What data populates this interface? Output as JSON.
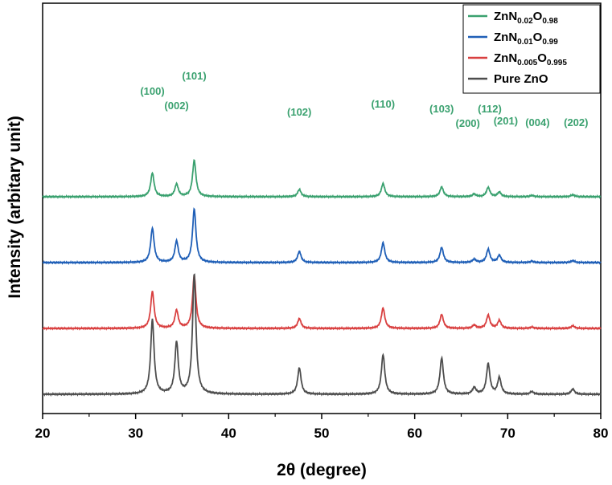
{
  "chart_data": {
    "type": "line",
    "xlabel": "2θ (degree)",
    "ylabel": "Intensity (arbitary unit)",
    "xlim": [
      20,
      80
    ],
    "xticks": [
      "20",
      "30",
      "40",
      "50",
      "60",
      "70",
      "80"
    ],
    "legend_position": "top-right",
    "series": [
      {
        "name": "ZnN0.02O0.98",
        "legend": {
          "base": "ZnN",
          "sub1": "0.02",
          "mid": "O",
          "sub2": "0.98"
        },
        "color": "#3aa16f",
        "offset": 3.0,
        "peaks": [
          {
            "pos": 31.8,
            "height": 0.36
          },
          {
            "pos": 34.4,
            "height": 0.19
          },
          {
            "pos": 36.3,
            "height": 0.55
          },
          {
            "pos": 47.6,
            "height": 0.11
          },
          {
            "pos": 56.6,
            "height": 0.2
          },
          {
            "pos": 62.9,
            "height": 0.15
          },
          {
            "pos": 66.4,
            "height": 0.04
          },
          {
            "pos": 67.9,
            "height": 0.14
          },
          {
            "pos": 69.1,
            "height": 0.07
          },
          {
            "pos": 72.6,
            "height": 0.02
          },
          {
            "pos": 77.0,
            "height": 0.03
          }
        ]
      },
      {
        "name": "ZnN0.01O0.99",
        "legend": {
          "base": "ZnN",
          "sub1": "0.01",
          "mid": "O",
          "sub2": "0.99"
        },
        "color": "#1f5fb7",
        "offset": 2.0,
        "peaks": [
          {
            "pos": 31.8,
            "height": 0.52
          },
          {
            "pos": 34.4,
            "height": 0.32
          },
          {
            "pos": 36.3,
            "height": 0.81
          },
          {
            "pos": 47.6,
            "height": 0.17
          },
          {
            "pos": 56.6,
            "height": 0.3
          },
          {
            "pos": 62.9,
            "height": 0.23
          },
          {
            "pos": 66.4,
            "height": 0.05
          },
          {
            "pos": 67.9,
            "height": 0.2
          },
          {
            "pos": 69.1,
            "height": 0.11
          },
          {
            "pos": 72.6,
            "height": 0.02
          },
          {
            "pos": 77.0,
            "height": 0.03
          }
        ]
      },
      {
        "name": "ZnN0.005O0.995",
        "legend": {
          "base": "ZnN",
          "sub1": "0.005",
          "mid": "O",
          "sub2": "0.995"
        },
        "color": "#d94040",
        "offset": 1.0,
        "peaks": [
          {
            "pos": 31.8,
            "height": 0.56
          },
          {
            "pos": 34.4,
            "height": 0.27
          },
          {
            "pos": 36.3,
            "height": 0.8
          },
          {
            "pos": 47.6,
            "height": 0.15
          },
          {
            "pos": 56.6,
            "height": 0.31
          },
          {
            "pos": 62.9,
            "height": 0.21
          },
          {
            "pos": 66.4,
            "height": 0.05
          },
          {
            "pos": 67.9,
            "height": 0.2
          },
          {
            "pos": 69.1,
            "height": 0.12
          },
          {
            "pos": 72.6,
            "height": 0.02
          },
          {
            "pos": 77.0,
            "height": 0.04
          }
        ]
      },
      {
        "name": "Pure ZnO",
        "legend": {
          "base": "Pure ZnO",
          "sub1": "",
          "mid": "",
          "sub2": ""
        },
        "color": "#4d4d4d",
        "offset": 0.0,
        "peaks": [
          {
            "pos": 31.8,
            "height": 1.13
          },
          {
            "pos": 34.4,
            "height": 0.78
          },
          {
            "pos": 36.3,
            "height": 1.82
          },
          {
            "pos": 47.6,
            "height": 0.4
          },
          {
            "pos": 56.6,
            "height": 0.6
          },
          {
            "pos": 62.9,
            "height": 0.55
          },
          {
            "pos": 66.4,
            "height": 0.1
          },
          {
            "pos": 67.9,
            "height": 0.46
          },
          {
            "pos": 69.1,
            "height": 0.25
          },
          {
            "pos": 72.6,
            "height": 0.04
          },
          {
            "pos": 77.0,
            "height": 0.08
          }
        ]
      }
    ],
    "annotations": [
      {
        "text": "(100)",
        "x": 31.8
      },
      {
        "text": "(002)",
        "x": 34.4
      },
      {
        "text": "(101)",
        "x": 36.3
      },
      {
        "text": "(102)",
        "x": 47.6
      },
      {
        "text": "(110)",
        "x": 56.6
      },
      {
        "text": "(103)",
        "x": 62.9
      },
      {
        "text": "(200)",
        "x": 66.4
      },
      {
        "text": "(112)",
        "x": 67.9
      },
      {
        "text": "(201)",
        "x": 69.1
      },
      {
        "text": "(004)",
        "x": 72.6
      },
      {
        "text": "(202)",
        "x": 77.0
      }
    ],
    "annotation_color": "#3aa16f"
  }
}
